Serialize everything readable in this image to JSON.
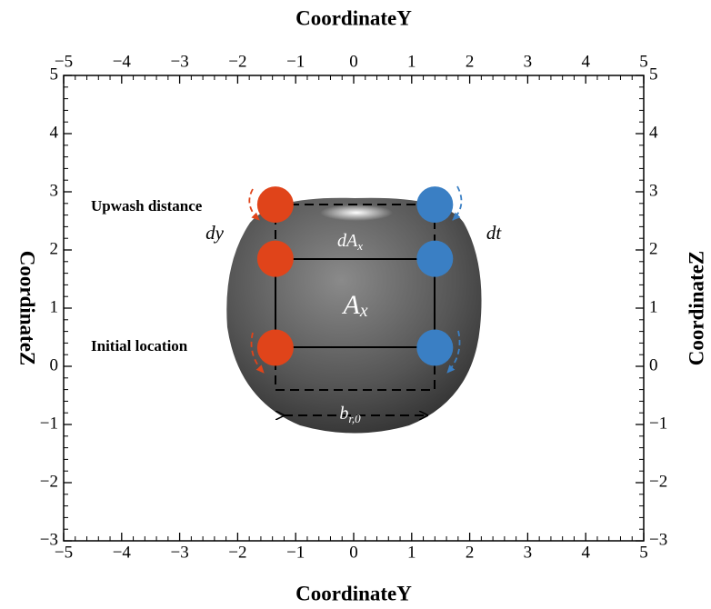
{
  "chart_data": {
    "type": "scatter",
    "x_label": "CoordinateY",
    "y_label": "CoordinateZ",
    "xlim": [
      -5,
      5
    ],
    "ylim": [
      -3,
      5
    ],
    "xticks": [
      {
        "value": -5,
        "label": "−5"
      },
      {
        "value": -4,
        "label": "−4"
      },
      {
        "value": -3,
        "label": "−3"
      },
      {
        "value": -2,
        "label": "−2"
      },
      {
        "value": -1,
        "label": "−1"
      },
      0,
      1,
      2,
      3,
      4,
      5
    ],
    "yticks": [
      {
        "value": -3,
        "label": "−3"
      },
      {
        "value": -2,
        "label": "−2"
      },
      {
        "value": -1,
        "label": "−1"
      },
      0,
      1,
      2,
      3,
      4,
      5
    ],
    "series": [
      {
        "color": "#e0441a",
        "x": [
          -1.35,
          -1.35,
          -1.35
        ],
        "values": [
          2.78,
          1.85,
          0.32
        ]
      },
      {
        "color": "#3a7fc4",
        "x": [
          1.4,
          1.4,
          1.4
        ],
        "values": [
          2.78,
          1.85,
          0.32
        ]
      }
    ],
    "annotations": [
      {
        "text": "Upwash distance"
      },
      {
        "text": "Initial location"
      },
      {
        "text": "dy"
      },
      {
        "text": "dt"
      },
      {
        "text": "dA",
        "sub": "x"
      },
      {
        "text": "A",
        "sub": "x"
      },
      {
        "text": "b",
        "sub": "r,0"
      }
    ]
  }
}
